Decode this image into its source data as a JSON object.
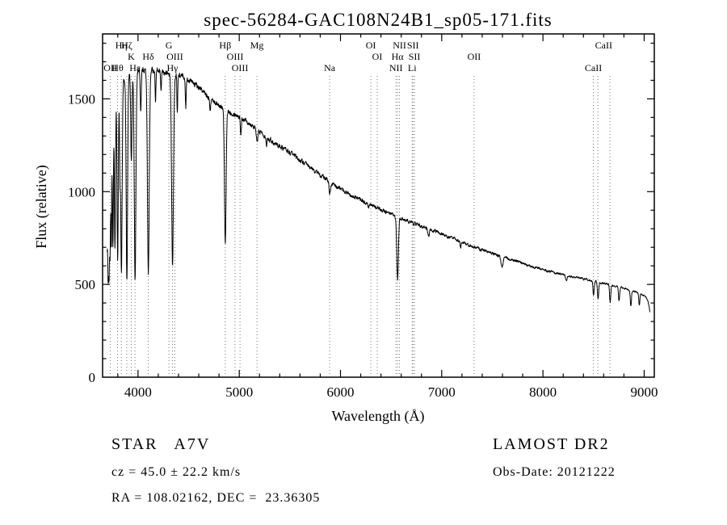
{
  "figure": {
    "title": "spec-56284-GAC108N24B1_sp05-171.fits",
    "xlabel": "Wavelength (Å)",
    "ylabel": "Flux (relative)",
    "footer": {
      "class_label": "STAR   A7V",
      "cz": "cz = 45.0 ± 22.2 km/s",
      "radec": "RA = 108.02162, DEC =  23.36305",
      "survey": "LAMOST DR2",
      "obs_date": "Obs-Date: 20121222"
    }
  },
  "chart_data": {
    "type": "line",
    "title": "spec-56284-GAC108N24B1_sp05-171.fits",
    "xlabel": "Wavelength (Å)",
    "ylabel": "Flux (relative)",
    "xlim": [
      3650,
      9100
    ],
    "ylim": [
      0,
      1850
    ],
    "x_ticks": [
      4000,
      5000,
      6000,
      7000,
      8000,
      9000
    ],
    "y_ticks": [
      0,
      500,
      1000,
      1500
    ],
    "grid": "dotted vertical lines at marked spectral features",
    "legend": "none",
    "spectral_lines": [
      {
        "label": "OII",
        "wavelength": 3727,
        "row": 3
      },
      {
        "label": "Hθ",
        "wavelength": 3798,
        "row": 3
      },
      {
        "label": "Hη",
        "wavelength": 3835,
        "row": 1
      },
      {
        "label": "Hζ",
        "wavelength": 3889,
        "row": 1
      },
      {
        "label": "K",
        "wavelength": 3933,
        "row": 2
      },
      {
        "label": "Hε",
        "wavelength": 3970,
        "row": 3
      },
      {
        "label": "Hδ",
        "wavelength": 4101,
        "row": 2
      },
      {
        "label": "G",
        "wavelength": 4305,
        "row": 1
      },
      {
        "label": "Hγ",
        "wavelength": 4340,
        "row": 3
      },
      {
        "label": "OIII",
        "wavelength": 4363,
        "row": 2
      },
      {
        "label": "Hβ",
        "wavelength": 4861,
        "row": 1
      },
      {
        "label": "OIII",
        "wavelength": 4959,
        "row": 2
      },
      {
        "label": "OIII",
        "wavelength": 5007,
        "row": 3
      },
      {
        "label": "Mg",
        "wavelength": 5175,
        "row": 1
      },
      {
        "label": "Na",
        "wavelength": 5893,
        "row": 3
      },
      {
        "label": "OI",
        "wavelength": 6300,
        "row": 1
      },
      {
        "label": "OI",
        "wavelength": 6363,
        "row": 2
      },
      {
        "label": "NII",
        "wavelength": 6548,
        "row": 3
      },
      {
        "label": "Hα",
        "wavelength": 6563,
        "row": 2
      },
      {
        "label": "NII",
        "wavelength": 6583,
        "row": 1
      },
      {
        "label": "Li",
        "wavelength": 6708,
        "row": 3
      },
      {
        "label": "SII",
        "wavelength": 6716,
        "row": 1
      },
      {
        "label": "SII",
        "wavelength": 6731,
        "row": 2
      },
      {
        "label": "OII",
        "wavelength": 7320,
        "row": 2
      },
      {
        "label": "CaII",
        "wavelength": 8498,
        "row": 3
      },
      {
        "label": "CaII",
        "wavelength": 8600,
        "row": 1
      }
    ],
    "dotted_line_wavelengths": [
      3727,
      3798,
      3835,
      3889,
      3933,
      3970,
      4101,
      4305,
      4340,
      4363,
      4861,
      4959,
      5007,
      5175,
      5893,
      6300,
      6363,
      6548,
      6563,
      6583,
      6708,
      6716,
      6731,
      7320,
      8498,
      8542,
      8662
    ],
    "continuum_points": [
      [
        3695,
        700
      ],
      [
        3710,
        1000
      ],
      [
        3730,
        1250
      ],
      [
        3760,
        1430
      ],
      [
        3800,
        1540
      ],
      [
        3850,
        1590
      ],
      [
        3920,
        1630
      ],
      [
        4000,
        1655
      ],
      [
        4080,
        1660
      ],
      [
        4200,
        1650
      ],
      [
        4300,
        1635
      ],
      [
        4450,
        1620
      ],
      [
        4550,
        1585
      ],
      [
        4650,
        1535
      ],
      [
        4750,
        1485
      ],
      [
        4850,
        1445
      ],
      [
        4950,
        1420
      ],
      [
        5050,
        1390
      ],
      [
        5150,
        1350
      ],
      [
        5250,
        1305
      ],
      [
        5350,
        1260
      ],
      [
        5450,
        1230
      ],
      [
        5550,
        1190
      ],
      [
        5650,
        1150
      ],
      [
        5750,
        1110
      ],
      [
        5850,
        1070
      ],
      [
        5950,
        1030
      ],
      [
        6050,
        1000
      ],
      [
        6150,
        970
      ],
      [
        6250,
        940
      ],
      [
        6350,
        915
      ],
      [
        6450,
        890
      ],
      [
        6550,
        862
      ],
      [
        6650,
        845
      ],
      [
        6750,
        825
      ],
      [
        6850,
        805
      ],
      [
        6950,
        785
      ],
      [
        7050,
        760
      ],
      [
        7150,
        738
      ],
      [
        7250,
        716
      ],
      [
        7350,
        696
      ],
      [
        7450,
        676
      ],
      [
        7550,
        658
      ],
      [
        7650,
        640
      ],
      [
        7750,
        622
      ],
      [
        7850,
        604
      ],
      [
        7950,
        588
      ],
      [
        8050,
        572
      ],
      [
        8150,
        558
      ],
      [
        8250,
        546
      ],
      [
        8350,
        535
      ],
      [
        8450,
        524
      ],
      [
        8550,
        512
      ],
      [
        8650,
        500
      ],
      [
        8750,
        488
      ],
      [
        8850,
        472
      ],
      [
        8950,
        452
      ],
      [
        9010,
        436
      ],
      [
        9035,
        415
      ],
      [
        9050,
        375
      ],
      [
        9058,
        340
      ]
    ],
    "absorption_features": [
      {
        "center": 3705,
        "depth": 350,
        "sigma": 4
      },
      {
        "center": 3714,
        "depth": 480,
        "sigma": 4
      },
      {
        "center": 3724,
        "depth": 520,
        "sigma": 4
      },
      {
        "center": 3736,
        "depth": 600,
        "sigma": 4
      },
      {
        "center": 3752,
        "depth": 680,
        "sigma": 5
      },
      {
        "center": 3772,
        "depth": 780,
        "sigma": 5
      },
      {
        "center": 3799,
        "depth": 900,
        "sigma": 6
      },
      {
        "center": 3821,
        "depth": 420,
        "sigma": 4
      },
      {
        "center": 3836,
        "depth": 1020,
        "sigma": 7
      },
      {
        "center": 3890,
        "depth": 1100,
        "sigma": 7
      },
      {
        "center": 3934,
        "depth": 470,
        "sigma": 6
      },
      {
        "center": 3971,
        "depth": 1120,
        "sigma": 8
      },
      {
        "center": 4027,
        "depth": 220,
        "sigma": 5
      },
      {
        "center": 4102,
        "depth": 1090,
        "sigma": 9
      },
      {
        "center": 4173,
        "depth": 160,
        "sigma": 4
      },
      {
        "center": 4227,
        "depth": 120,
        "sigma": 4
      },
      {
        "center": 4341,
        "depth": 1030,
        "sigma": 9
      },
      {
        "center": 4388,
        "depth": 190,
        "sigma": 4
      },
      {
        "center": 4472,
        "depth": 170,
        "sigma": 4
      },
      {
        "center": 4713,
        "depth": 80,
        "sigma": 4
      },
      {
        "center": 4862,
        "depth": 730,
        "sigma": 8
      },
      {
        "center": 5016,
        "depth": 90,
        "sigma": 5
      },
      {
        "center": 5176,
        "depth": 65,
        "sigma": 9
      },
      {
        "center": 5270,
        "depth": 40,
        "sigma": 5
      },
      {
        "center": 5894,
        "depth": 60,
        "sigma": 7
      },
      {
        "center": 6279,
        "depth": 25,
        "sigma": 5
      },
      {
        "center": 6564,
        "depth": 335,
        "sigma": 8
      },
      {
        "center": 6869,
        "depth": 45,
        "sigma": 8
      },
      {
        "center": 7187,
        "depth": 30,
        "sigma": 6
      },
      {
        "center": 7595,
        "depth": 55,
        "sigma": 10
      },
      {
        "center": 8230,
        "depth": 30,
        "sigma": 7
      },
      {
        "center": 8500,
        "depth": 75,
        "sigma": 6
      },
      {
        "center": 8545,
        "depth": 95,
        "sigma": 6
      },
      {
        "center": 8664,
        "depth": 95,
        "sigma": 6
      },
      {
        "center": 8752,
        "depth": 75,
        "sigma": 6
      },
      {
        "center": 8868,
        "depth": 85,
        "sigma": 6
      },
      {
        "center": 8952,
        "depth": 65,
        "sigma": 5
      }
    ],
    "noise_amplitude_blue_to_red": [
      22,
      6
    ],
    "data_range": [
      3695,
      9058
    ]
  }
}
